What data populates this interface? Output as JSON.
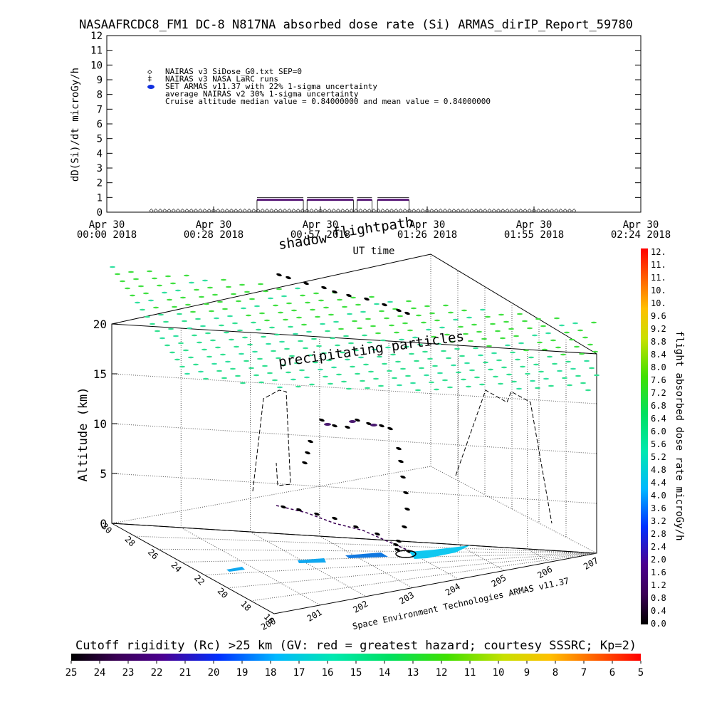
{
  "title": "NASAAFRCDC8_FM1 DC-8   N817NA absorbed dose rate (Si) ARMAS_dirIP_Report_59780",
  "chart_data": [
    {
      "type": "scatter",
      "panel": "dose-rate-timeseries",
      "ylabel": "dD(Si)/dt microGy/h",
      "xlabel": "UT time",
      "ylim": [
        0,
        12
      ],
      "yticks": [
        "0",
        "1",
        "2",
        "3",
        "4",
        "5",
        "6",
        "7",
        "8",
        "9",
        "10",
        "11",
        "12"
      ],
      "xticks": [
        {
          "t": 0,
          "l1": "Apr 30",
          "l2": "00:00 2018"
        },
        {
          "t": 28.8,
          "l1": "Apr 30",
          "l2": "00:28 2018"
        },
        {
          "t": 57.6,
          "l1": "Apr 30",
          "l2": "00:57 2018"
        },
        {
          "t": 86.4,
          "l1": "Apr 30",
          "l2": "01:26 2018"
        },
        {
          "t": 115.2,
          "l1": "Apr 30",
          "l2": "01:55 2018"
        },
        {
          "t": 144,
          "l1": "Apr 30",
          "l2": "02:24 2018"
        }
      ],
      "legend": [
        "NAIRAS v3 SiDose_G0.txt SEP=0",
        "NAIRAS v3 NASA LaRC runs",
        "SET ARMAS v11.37 with 22% 1-sigma uncertainty",
        "average NAIRAS v2 30% 1-sigma uncertainty",
        "Cruise altitude median value = 0.84000000 and mean value = 0.84000000"
      ],
      "series": [
        {
          "name": "SET ARMAS v11.37 with 22% 1-sigma uncertainty",
          "segments": [
            {
              "t0": 40.5,
              "t1": 53.0,
              "y": 0.84
            },
            {
              "t0": 54.0,
              "t1": 66.5,
              "y": 0.84
            },
            {
              "t0": 67.5,
              "t1": 71.5,
              "y": 0.84
            },
            {
              "t0": 73.0,
              "t1": 81.5,
              "y": 0.84
            }
          ]
        },
        {
          "name": "NAIRAS v3 SiDose_G0.txt SEP=0",
          "t0": 12.0,
          "t1": 127.0,
          "y": 0.0
        }
      ]
    },
    {
      "type": "scatter",
      "panel": "3d-flight-track",
      "zlabel": "Altitude (km)",
      "zticks": [
        "0",
        "5",
        "10",
        "15",
        "20"
      ],
      "lat_ticks": [
        "30",
        "28",
        "26",
        "24",
        "22",
        "20",
        "18",
        "16"
      ],
      "lon_ticks": [
        "200",
        "201",
        "202",
        "203",
        "204",
        "205",
        "206",
        "207"
      ],
      "annotations": [
        "flightpath",
        "shadow",
        "precipitating particles"
      ],
      "credit": "Space Environment Technologies ARMAS v11.37",
      "colorbar": {
        "label": "flight absorbed dose rate microGy/h",
        "ticks": [
          "12.",
          "11.",
          "11.",
          "10.",
          "10.",
          "9.6",
          "9.2",
          "8.8",
          "8.4",
          "8.0",
          "7.6",
          "7.2",
          "6.8",
          "6.4",
          "6.0",
          "5.6",
          "5.2",
          "4.8",
          "4.4",
          "4.0",
          "3.6",
          "3.2",
          "2.8",
          "2.4",
          "2.0",
          "1.6",
          "1.2",
          "0.8",
          "0.4",
          "0.0"
        ]
      }
    },
    {
      "type": "heatmap",
      "panel": "cutoff-rigidity-colorbar",
      "title": "Cutoff rigidity (Rc) >25 km (GV: red = greatest hazard; courtesy SSSRC; Kp=2)",
      "ticks": [
        "25",
        "24",
        "23",
        "22",
        "21",
        "20",
        "19",
        "18",
        "17",
        "16",
        "15",
        "14",
        "13",
        "12",
        "11",
        "10",
        "9",
        "8",
        "7",
        "6",
        "5"
      ]
    }
  ]
}
